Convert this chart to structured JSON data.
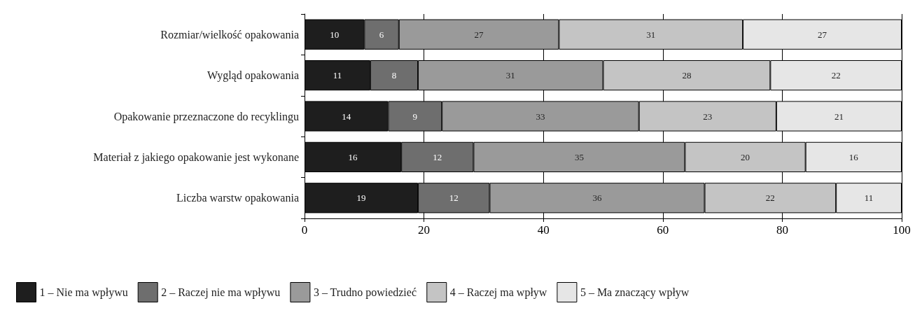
{
  "chart_data": {
    "type": "bar",
    "orientation": "horizontal",
    "stacked": true,
    "categories": [
      "Rozmiar/wielkość opakowania",
      "Wygląd opakowania",
      "Opakowanie przeznaczone do recyklingu",
      "Materiał z jakiego opakowanie jest wykonane",
      "Liczba warstw opakowania"
    ],
    "series": [
      {
        "name": "1 – Nie ma wpływu",
        "color": "#1e1e1e",
        "values": [
          10,
          11,
          14,
          16.2,
          19
        ],
        "value_labels": [
          "10",
          "11",
          "14",
          "16",
          "19"
        ]
      },
      {
        "name": "2 – Raczej nie ma wpływu",
        "color": "#6e6e6e",
        "values": [
          5.8,
          8,
          9,
          12.1,
          12
        ],
        "value_labels": [
          "6",
          "8",
          "9",
          "12",
          "12"
        ]
      },
      {
        "name": "3 – Trudno powiedzieć",
        "color": "#9a9a9a",
        "values": [
          26.8,
          31,
          33,
          35.4,
          36
        ],
        "value_labels": [
          "27",
          "31",
          "33",
          "35",
          "36"
        ]
      },
      {
        "name": "4 – Raczej ma wpływ",
        "color": "#c4c4c4",
        "values": [
          30.8,
          28,
          23,
          20.2,
          22
        ],
        "value_labels": [
          "31",
          "28",
          "23",
          "20",
          "22"
        ]
      },
      {
        "name": "5 – Ma znaczący wpływ",
        "color": "#e6e6e6",
        "values": [
          26.6,
          22,
          21,
          16.1,
          11
        ],
        "value_labels": [
          "27",
          "22",
          "21",
          "16",
          "11"
        ]
      }
    ],
    "xlim": [
      0,
      100
    ],
    "xticks": [
      0,
      20,
      40,
      60,
      80,
      100
    ],
    "grid": "x",
    "legend": "bottom"
  }
}
